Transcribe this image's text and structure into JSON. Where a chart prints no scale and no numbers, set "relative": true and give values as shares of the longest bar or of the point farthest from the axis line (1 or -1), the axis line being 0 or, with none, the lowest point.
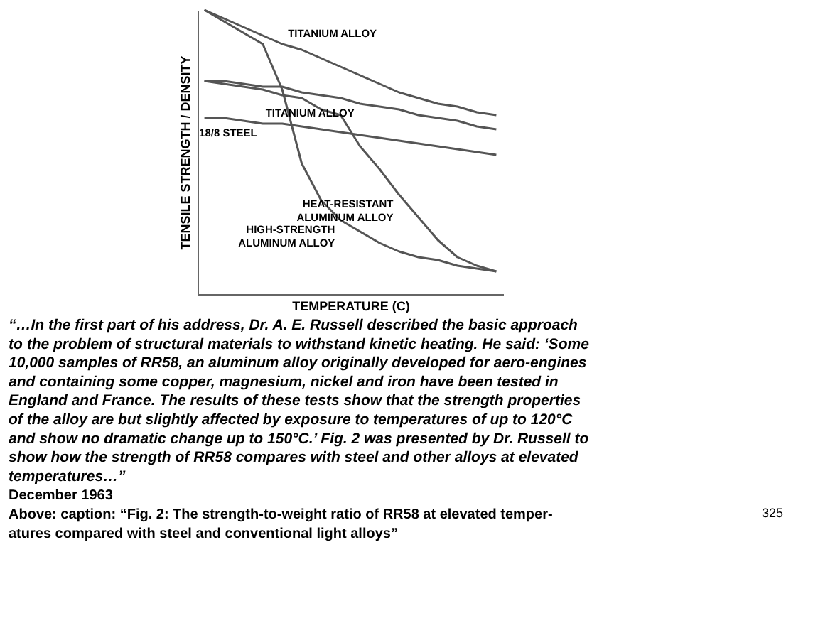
{
  "chart_data": {
    "type": "line",
    "relative": true,
    "xlabel": "TEMPERATURE (C)",
    "ylabel": "TENSILE STRENGTH / DENSITY",
    "tick_labels": false,
    "grid": false,
    "marker": "none",
    "line_style": "solid",
    "categories": [
      null,
      null,
      null,
      null,
      null,
      null,
      null,
      null,
      null,
      null,
      null,
      null,
      null,
      null,
      null,
      null
    ],
    "series": [
      {
        "name": "TITANIUM ALLOY",
        "color": "#555555",
        "values": [
          1.0,
          0.97,
          0.94,
          0.91,
          0.88,
          0.86,
          0.83,
          0.8,
          0.77,
          0.74,
          0.71,
          0.69,
          0.67,
          0.66,
          0.64,
          0.63
        ]
      },
      {
        "name": "TITANIUM ALLOY",
        "color": "#555555",
        "values": [
          0.75,
          0.75,
          0.74,
          0.73,
          0.73,
          0.71,
          0.7,
          0.69,
          0.67,
          0.66,
          0.65,
          0.63,
          0.62,
          0.61,
          0.59,
          0.58
        ]
      },
      {
        "name": "18/8 STEEL",
        "color": "#555555",
        "values": [
          0.62,
          0.62,
          0.61,
          0.6,
          0.6,
          0.59,
          0.58,
          0.57,
          0.56,
          0.55,
          0.54,
          0.53,
          0.52,
          0.51,
          0.5,
          0.49
        ]
      },
      {
        "name": "HIGH-STRENGTH\nALUMINUM ALLOY",
        "color": "#555555",
        "values": [
          1.0,
          0.96,
          0.92,
          0.88,
          0.72,
          0.46,
          0.33,
          0.26,
          0.22,
          0.18,
          0.15,
          0.13,
          0.12,
          0.1,
          0.09,
          0.08
        ]
      },
      {
        "name": "HEAT-RESISTANT\nALUMINUM ALLOY",
        "color": "#555555",
        "values": [
          0.75,
          0.74,
          0.73,
          0.72,
          0.7,
          0.69,
          0.65,
          0.63,
          0.52,
          0.44,
          0.35,
          0.27,
          0.19,
          0.13,
          0.1,
          0.08
        ]
      }
    ],
    "annotations": [
      "“…In the first part of his address, Dr. A. E. Russell described the basic approach\nto the problem of structural materials to withstand kinetic heating. He said: ‘Some\n10,000 samples of RR58, an aluminum alloy originally developed for aero-engines\nand containing some copper, magnesium, nickel and iron have been tested in\nEngland and France. The results of these tests show that the strength properties\nof the alloy are but slightly affected by exposure to temperatures of up to 120°C\nand show no dramatic change up to 150°C.’ Fig. 2 was presented by Dr. Russell to\nshow how the strength of RR58 compares with steel and other alloys at elevated\ntemperatures…”",
      "December 1963",
      "Above: caption: “Fig. 2: The strength-to-weight ratio of RR58 at elevated temper-\natures compared with steel and conventional light alloys”",
      "325"
    ]
  }
}
